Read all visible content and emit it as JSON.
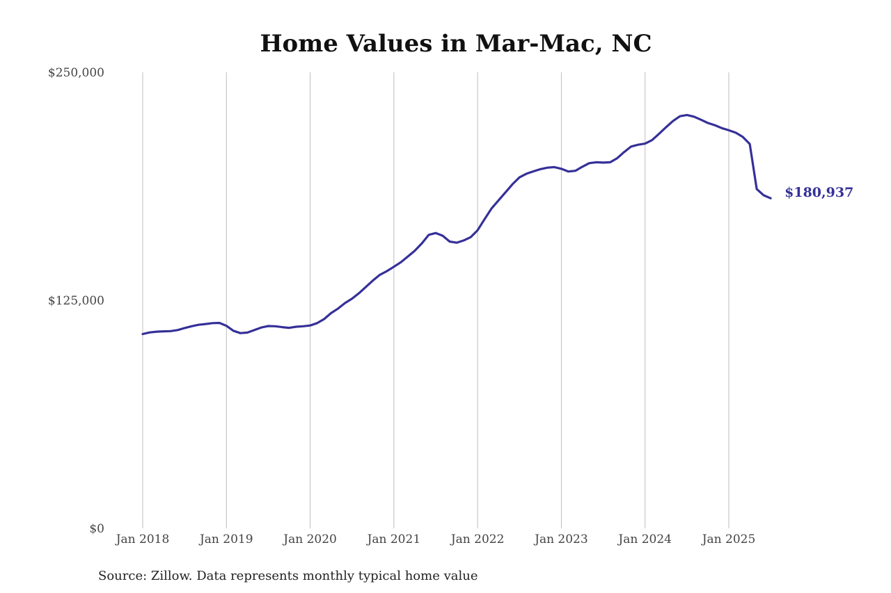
{
  "chart_data": {
    "type": "line",
    "title": "Home Values in Mar-Mac, NC",
    "source_note": "Source: Zillow. Data represents monthly typical home value",
    "ylim": [
      0,
      250000
    ],
    "y_ticks": [
      {
        "value": 0,
        "label": "$0"
      },
      {
        "value": 125000,
        "label": "$125,000"
      },
      {
        "value": 250000,
        "label": "$250,000"
      }
    ],
    "x_ticks": [
      {
        "value": "2018-01",
        "label": "Jan 2018"
      },
      {
        "value": "2019-01",
        "label": "Jan 2019"
      },
      {
        "value": "2020-01",
        "label": "Jan 2020"
      },
      {
        "value": "2021-01",
        "label": "Jan 2021"
      },
      {
        "value": "2022-01",
        "label": "Jan 2022"
      },
      {
        "value": "2023-01",
        "label": "Jan 2023"
      },
      {
        "value": "2024-01",
        "label": "Jan 2024"
      },
      {
        "value": "2025-01",
        "label": "Jan 2025"
      }
    ],
    "grid_x": true,
    "grid_y": false,
    "line_color": "#353098",
    "end_label": "$180,937",
    "series": [
      {
        "x": [
          "2018-01",
          "2018-02",
          "2018-03",
          "2018-04",
          "2018-05",
          "2018-06",
          "2018-07",
          "2018-08",
          "2018-09",
          "2018-10",
          "2018-11",
          "2018-12",
          "2019-01",
          "2019-02",
          "2019-03",
          "2019-04",
          "2019-05",
          "2019-06",
          "2019-07",
          "2019-08",
          "2019-09",
          "2019-10",
          "2019-11",
          "2019-12",
          "2020-01",
          "2020-02",
          "2020-03",
          "2020-04",
          "2020-05",
          "2020-06",
          "2020-07",
          "2020-08",
          "2020-09",
          "2020-10",
          "2020-11",
          "2020-12",
          "2021-01",
          "2021-02",
          "2021-03",
          "2021-04",
          "2021-05",
          "2021-06",
          "2021-07",
          "2021-08",
          "2021-09",
          "2021-10",
          "2021-11",
          "2021-12",
          "2022-01",
          "2022-02",
          "2022-03",
          "2022-04",
          "2022-05",
          "2022-06",
          "2022-07",
          "2022-08",
          "2022-09",
          "2022-10",
          "2022-11",
          "2022-12",
          "2023-01",
          "2023-02",
          "2023-03",
          "2023-04",
          "2023-05",
          "2023-06",
          "2023-07",
          "2023-08",
          "2023-09",
          "2023-10",
          "2023-11",
          "2023-12",
          "2024-01",
          "2024-02",
          "2024-03",
          "2024-04",
          "2024-05",
          "2024-06",
          "2024-07",
          "2024-08",
          "2024-09",
          "2024-10",
          "2024-11",
          "2024-12",
          "2025-01",
          "2025-02",
          "2025-03",
          "2025-04",
          "2025-05",
          "2025-06",
          "2025-07"
        ],
        "values": [
          106500,
          107400,
          107800,
          108000,
          108100,
          108700,
          109800,
          110800,
          111600,
          112000,
          112500,
          112600,
          111000,
          108300,
          107000,
          107300,
          108700,
          110100,
          110900,
          110800,
          110300,
          109900,
          110500,
          110800,
          111200,
          112500,
          114700,
          118000,
          120500,
          123500,
          125900,
          128900,
          132400,
          135900,
          139000,
          141000,
          143400,
          145900,
          149000,
          152200,
          156200,
          160900,
          161900,
          160400,
          157200,
          156600,
          157800,
          159600,
          163400,
          169500,
          175400,
          179800,
          184200,
          188700,
          192400,
          194400,
          195700,
          196900,
          197700,
          198000,
          197100,
          195600,
          196000,
          198200,
          200200,
          200700,
          200500,
          200700,
          202900,
          206300,
          209300,
          210300,
          210900,
          212800,
          216300,
          219900,
          223300,
          225900,
          226600,
          225700,
          224000,
          222200,
          221000,
          219400,
          218200,
          216900,
          214600,
          210700,
          186000,
          182600,
          180937
        ]
      }
    ]
  }
}
